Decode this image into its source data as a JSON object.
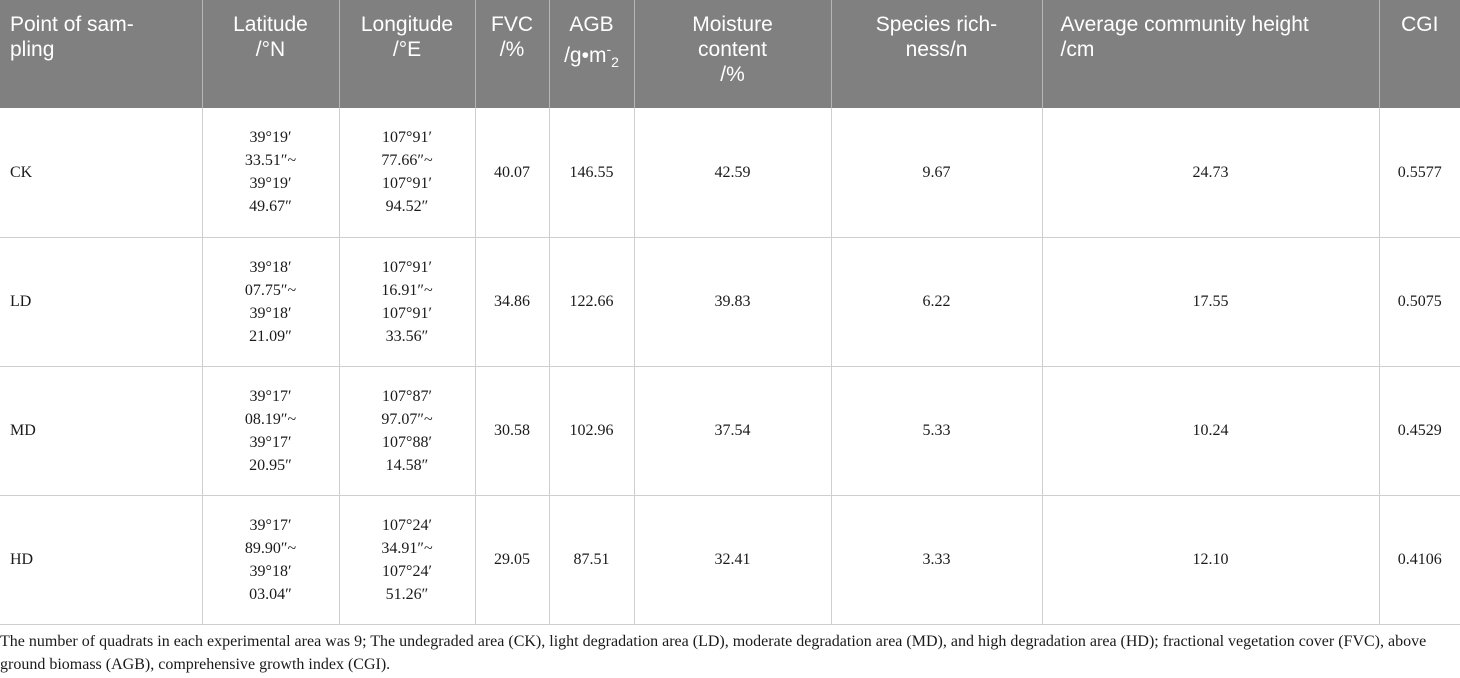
{
  "table": {
    "headers": [
      {
        "lines": [
          "Point of sam-",
          "pling"
        ]
      },
      {
        "lines": [
          "Latitude",
          "/°N"
        ]
      },
      {
        "lines": [
          "Longitude",
          "/°E"
        ]
      },
      {
        "lines": [
          "FVC",
          "/%"
        ]
      },
      {
        "lines": [
          "AGB",
          "/g•m-2"
        ]
      },
      {
        "lines": [
          "Moisture",
          "content",
          "/%"
        ]
      },
      {
        "lines": [
          "Species rich-",
          "ness/n"
        ]
      },
      {
        "lines": [
          "Average community height",
          "/cm"
        ]
      },
      {
        "lines": [
          "CGI"
        ]
      }
    ],
    "agb_header": {
      "base": "/g•m",
      "sup": "-",
      "sub": "2"
    },
    "rows": [
      {
        "point": "CK",
        "latitude": [
          "39°19′",
          "33.51″~",
          "39°19′",
          "49.67″"
        ],
        "longitude": [
          "107°91′",
          "77.66″~",
          "107°91′",
          "94.52″"
        ],
        "fvc": "40.07",
        "agb": "146.55",
        "moisture": "42.59",
        "species": "9.67",
        "height": "24.73",
        "cgi": "0.5577"
      },
      {
        "point": "LD",
        "latitude": [
          "39°18′",
          "07.75″~",
          "39°18′",
          "21.09″"
        ],
        "longitude": [
          "107°91′",
          "16.91″~",
          "107°91′",
          "33.56″"
        ],
        "fvc": "34.86",
        "agb": "122.66",
        "moisture": "39.83",
        "species": "6.22",
        "height": "17.55",
        "cgi": "0.5075"
      },
      {
        "point": "MD",
        "latitude": [
          "39°17′",
          "08.19″~",
          "39°17′",
          "20.95″"
        ],
        "longitude": [
          "107°87′",
          "97.07″~",
          "107°88′",
          "14.58″"
        ],
        "fvc": "30.58",
        "agb": "102.96",
        "moisture": "37.54",
        "species": "5.33",
        "height": "10.24",
        "cgi": "0.4529"
      },
      {
        "point": "HD",
        "latitude": [
          "39°17′",
          "89.90″~",
          "39°18′",
          "03.04″"
        ],
        "longitude": [
          "107°24′",
          "34.91″~",
          "107°24′",
          "51.26″"
        ],
        "fvc": "29.05",
        "agb": "87.51",
        "moisture": "32.41",
        "species": "3.33",
        "height": "12.10",
        "cgi": "0.4106"
      }
    ]
  },
  "footnote": "The number of quadrats in each experimental area was 9; The undegraded area (CK), light degradation area (LD), moderate degradation area (MD), and high degradation area (HD); fractional vegetation cover (FVC), above ground biomass (AGB), comprehensive growth index (CGI)."
}
